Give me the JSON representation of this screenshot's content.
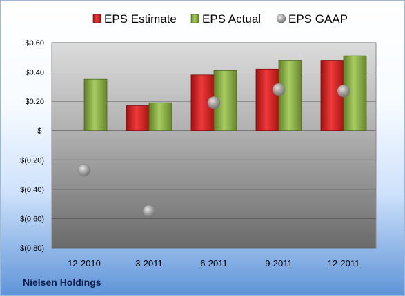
{
  "chart_data": {
    "type": "bar",
    "categories": [
      "12-2010",
      "3-2011",
      "6-2011",
      "9-2011",
      "12-2011"
    ],
    "series": [
      {
        "name": "EPS Estimate",
        "type": "bar",
        "color": "#d01e1e",
        "values": [
          null,
          0.17,
          0.38,
          0.42,
          0.48
        ]
      },
      {
        "name": "EPS Actual",
        "type": "bar",
        "color": "#8fb24a",
        "values": [
          0.35,
          0.19,
          0.41,
          0.48,
          0.51
        ]
      },
      {
        "name": "EPS GAAP",
        "type": "scatter",
        "color": "#a0a0a0",
        "values": [
          -0.27,
          -0.55,
          0.19,
          0.28,
          0.27
        ]
      }
    ],
    "ylim": [
      -0.8,
      0.6
    ],
    "yticks": [
      0.6,
      0.4,
      0.2,
      0,
      -0.2,
      -0.4,
      -0.6,
      -0.8
    ],
    "ytick_labels": [
      "$0.60",
      "$0.40",
      "$0.20",
      "$-",
      "$(0.20)",
      "$(0.40)",
      "$(0.60)",
      "$(0.80)"
    ],
    "grid": true,
    "legend_position": "top"
  },
  "footer": {
    "company": "Nielsen Holdings"
  }
}
